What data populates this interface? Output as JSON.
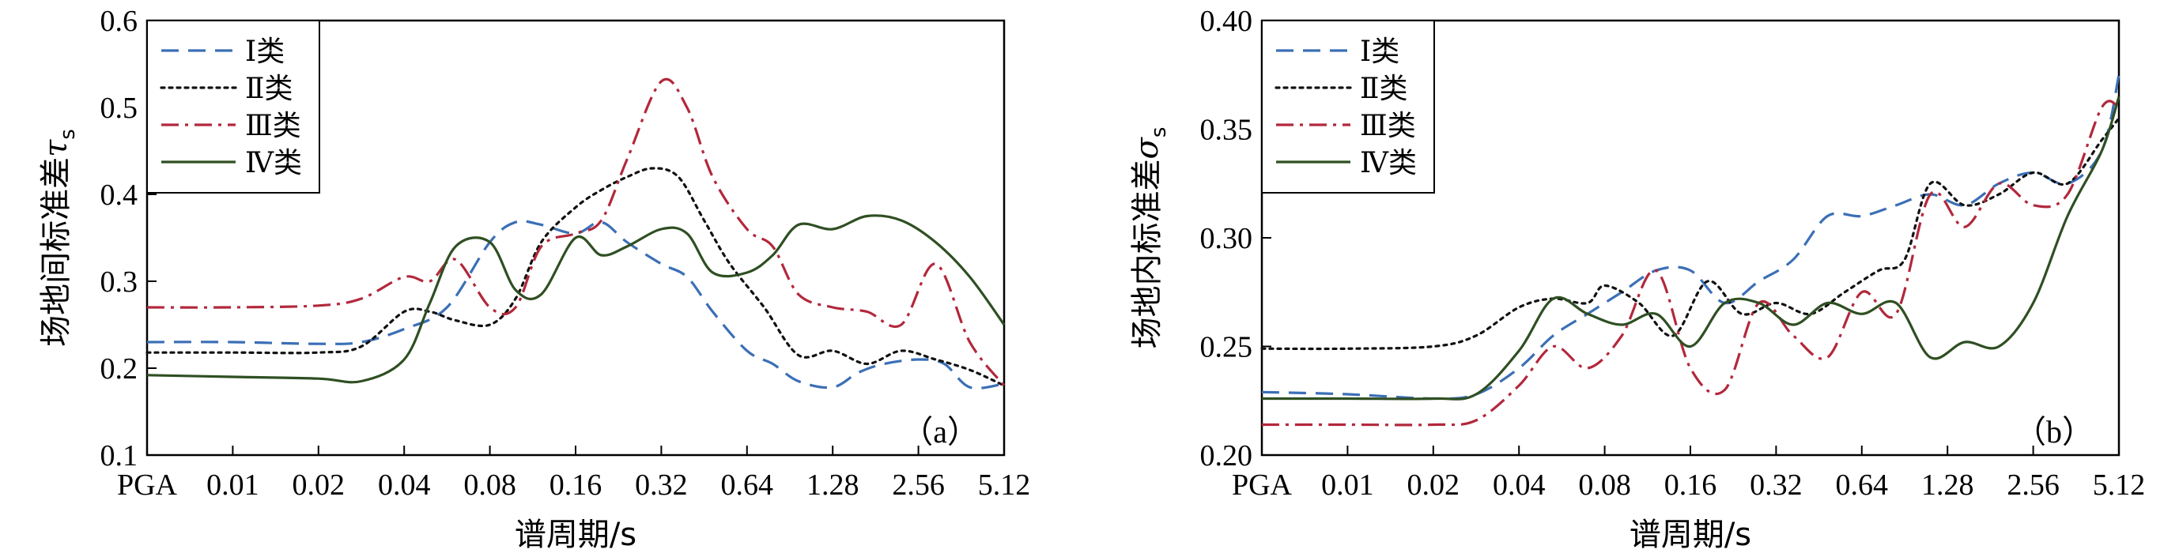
{
  "chart_data": [
    {
      "type": "line",
      "panel_label": "（a）",
      "xlabel": "谱周期/s",
      "ylabel_main": "场地间标准差",
      "ylabel_symbol": "τ",
      "ylabel_sub": "s",
      "categories": [
        "PGA",
        "0.01",
        "0.02",
        "0.04",
        "0.08",
        "0.16",
        "0.32",
        "0.64",
        "1.28",
        "2.56",
        "5.12"
      ],
      "ylim": [
        0.1,
        0.6
      ],
      "yticks": [
        "0.1",
        "0.2",
        "0.3",
        "0.4",
        "0.5",
        "0.6"
      ],
      "legend_position": "top-left",
      "series": [
        {
          "name": "Ⅰ类",
          "color": "#3b6fb6",
          "dash": "dashed",
          "x": [
            0,
            1,
            2,
            2.5,
            3,
            3.5,
            4,
            4.3,
            4.6,
            5,
            5.3,
            5.6,
            6,
            6.3,
            6.6,
            7,
            7.3,
            7.6,
            8,
            8.3,
            8.6,
            9,
            9.3,
            9.6,
            10
          ],
          "y": [
            0.23,
            0.23,
            0.228,
            0.23,
            0.245,
            0.27,
            0.345,
            0.368,
            0.365,
            0.355,
            0.368,
            0.345,
            0.32,
            0.305,
            0.265,
            0.22,
            0.205,
            0.185,
            0.178,
            0.195,
            0.205,
            0.21,
            0.205,
            0.178,
            0.182
          ]
        },
        {
          "name": "Ⅱ类",
          "color": "#111111",
          "dash": "dotted",
          "x": [
            0,
            1,
            2,
            2.5,
            3,
            3.3,
            3.6,
            4,
            4.3,
            4.6,
            5,
            5.3,
            5.6,
            5.9,
            6.2,
            6.5,
            6.8,
            7.2,
            7.6,
            8,
            8.4,
            8.8,
            9.2,
            9.6,
            10
          ],
          "y": [
            0.218,
            0.218,
            0.218,
            0.225,
            0.265,
            0.265,
            0.255,
            0.25,
            0.28,
            0.345,
            0.385,
            0.405,
            0.42,
            0.43,
            0.42,
            0.37,
            0.32,
            0.27,
            0.215,
            0.22,
            0.205,
            0.22,
            0.21,
            0.198,
            0.18
          ]
        },
        {
          "name": "Ⅲ类",
          "color": "#b2283c",
          "dash": "dashdot",
          "x": [
            0,
            1,
            2,
            2.5,
            3,
            3.3,
            3.6,
            4,
            4.3,
            4.6,
            5,
            5.3,
            5.6,
            6,
            6.3,
            6.6,
            7,
            7.3,
            7.6,
            8,
            8.4,
            8.8,
            9.2,
            9.6,
            10
          ],
          "y": [
            0.27,
            0.27,
            0.272,
            0.28,
            0.305,
            0.3,
            0.325,
            0.27,
            0.27,
            0.34,
            0.355,
            0.37,
            0.44,
            0.53,
            0.5,
            0.42,
            0.36,
            0.34,
            0.285,
            0.27,
            0.265,
            0.25,
            0.32,
            0.23,
            0.18
          ]
        },
        {
          "name": "Ⅳ类",
          "color": "#2f4f22",
          "dash": "solid",
          "x": [
            0,
            1,
            2,
            2.5,
            3,
            3.3,
            3.6,
            4,
            4.3,
            4.6,
            5,
            5.3,
            5.6,
            6,
            6.3,
            6.6,
            7,
            7.3,
            7.6,
            8,
            8.4,
            8.8,
            9.2,
            9.6,
            10
          ],
          "y": [
            0.192,
            0.19,
            0.188,
            0.185,
            0.21,
            0.275,
            0.34,
            0.345,
            0.29,
            0.285,
            0.35,
            0.33,
            0.34,
            0.36,
            0.355,
            0.31,
            0.31,
            0.33,
            0.365,
            0.36,
            0.375,
            0.37,
            0.345,
            0.305,
            0.25
          ]
        }
      ]
    },
    {
      "type": "line",
      "panel_label": "（b）",
      "xlabel": "谱周期/s",
      "ylabel_main": "场地内标准差",
      "ylabel_symbol": "σ",
      "ylabel_sub": "s",
      "categories": [
        "PGA",
        "0.01",
        "0.02",
        "0.04",
        "0.08",
        "0.16",
        "0.32",
        "0.64",
        "1.28",
        "2.56",
        "5.12"
      ],
      "ylim": [
        0.2,
        0.4
      ],
      "yticks": [
        "0.20",
        "0.25",
        "0.30",
        "0.35",
        "0.40"
      ],
      "legend_position": "top-left",
      "series": [
        {
          "name": "Ⅰ类",
          "color": "#3b6fb6",
          "dash": "dashed",
          "x": [
            0,
            1,
            2,
            2.5,
            3,
            3.4,
            3.8,
            4.2,
            4.6,
            5,
            5.4,
            5.8,
            6.2,
            6.6,
            7,
            7.4,
            7.8,
            8.2,
            8.6,
            9,
            9.4,
            9.8,
            10
          ],
          "y": [
            0.229,
            0.228,
            0.226,
            0.228,
            0.24,
            0.255,
            0.265,
            0.275,
            0.285,
            0.285,
            0.27,
            0.28,
            0.29,
            0.31,
            0.31,
            0.315,
            0.32,
            0.315,
            0.325,
            0.33,
            0.325,
            0.34,
            0.375
          ]
        },
        {
          "name": "Ⅱ类",
          "color": "#111111",
          "dash": "dotted",
          "x": [
            0,
            1,
            2,
            2.5,
            3,
            3.4,
            3.8,
            4,
            4.4,
            4.8,
            5.2,
            5.6,
            6,
            6.4,
            6.8,
            7.2,
            7.5,
            7.8,
            8.2,
            8.6,
            9,
            9.4,
            9.8,
            10
          ],
          "y": [
            0.249,
            0.249,
            0.25,
            0.255,
            0.268,
            0.272,
            0.27,
            0.278,
            0.27,
            0.255,
            0.28,
            0.265,
            0.27,
            0.265,
            0.275,
            0.285,
            0.29,
            0.325,
            0.315,
            0.32,
            0.33,
            0.325,
            0.345,
            0.355
          ]
        },
        {
          "name": "Ⅲ类",
          "color": "#b2283c",
          "dash": "dashdot",
          "x": [
            0,
            1,
            2,
            2.5,
            3,
            3.4,
            3.8,
            4.2,
            4.6,
            5,
            5.4,
            5.8,
            6.2,
            6.6,
            7,
            7.4,
            7.8,
            8.2,
            8.6,
            9,
            9.4,
            9.8,
            10
          ],
          "y": [
            0.214,
            0.214,
            0.214,
            0.216,
            0.232,
            0.25,
            0.24,
            0.255,
            0.285,
            0.24,
            0.23,
            0.27,
            0.255,
            0.245,
            0.275,
            0.265,
            0.32,
            0.305,
            0.325,
            0.315,
            0.32,
            0.36,
            0.36
          ]
        },
        {
          "name": "Ⅳ类",
          "color": "#2f4f22",
          "dash": "solid",
          "x": [
            0,
            1,
            2,
            2.5,
            3,
            3.4,
            3.8,
            4.2,
            4.6,
            5,
            5.4,
            5.8,
            6.2,
            6.6,
            7,
            7.4,
            7.8,
            8.2,
            8.6,
            9,
            9.4,
            9.8,
            10
          ],
          "y": [
            0.226,
            0.226,
            0.226,
            0.228,
            0.248,
            0.272,
            0.265,
            0.26,
            0.265,
            0.25,
            0.27,
            0.27,
            0.26,
            0.27,
            0.265,
            0.27,
            0.245,
            0.252,
            0.25,
            0.27,
            0.31,
            0.34,
            0.365
          ]
        }
      ]
    }
  ]
}
